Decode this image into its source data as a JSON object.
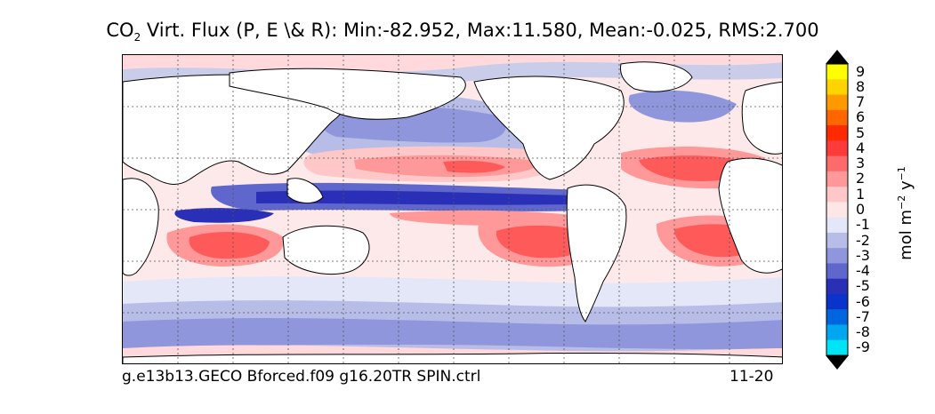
{
  "title": {
    "prefix": "CO",
    "subscript": "2",
    "suffix": " Virt. Flux (P, E \\& R): Min:-82.952, Max:11.580, Mean:-0.025, RMS:2.700"
  },
  "footer": {
    "run_name": "g.e13b13.GECO Bforced.f09 g16.20TR SPIN.ctrl",
    "period": "11-20"
  },
  "colorbar": {
    "units_base": "mol m",
    "units_exp1": "−2",
    "units_mid": " y",
    "units_exp2": "−1",
    "tick_labels": [
      "9",
      "8",
      "7",
      "6",
      "5",
      "4",
      "3",
      "2",
      "1",
      "0",
      "-1",
      "-2",
      "-3",
      "-4",
      "-5",
      "-6",
      "-7",
      "-8",
      "-9"
    ],
    "colors": [
      "#ffff00",
      "#ffd400",
      "#ff9900",
      "#ff6600",
      "#ff2a00",
      "#ff3a3a",
      "#ff6b6b",
      "#ff9898",
      "#ffc7c7",
      "#ffe6e6",
      "#e4e7f7",
      "#b8bde8",
      "#8f96db",
      "#5f66cc",
      "#2a2fb8",
      "#0a33cc",
      "#0066dd",
      "#00a7ee",
      "#00e5f5"
    ]
  }
}
